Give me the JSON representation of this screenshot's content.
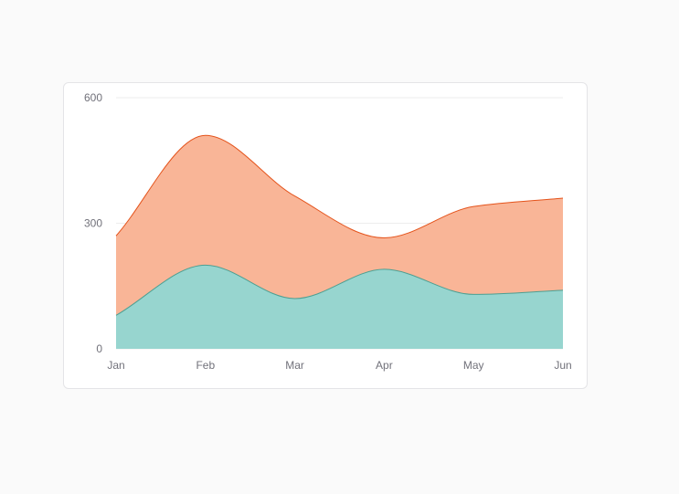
{
  "chart_data": {
    "type": "area",
    "stacked": true,
    "categories": [
      "Jan",
      "Feb",
      "Mar",
      "Apr",
      "May",
      "Jun"
    ],
    "series": [
      {
        "key": "lower",
        "values": [
          80,
          200,
          120,
          190,
          130,
          140
        ]
      },
      {
        "key": "upper",
        "values": [
          190,
          310,
          245,
          75,
          210,
          220
        ]
      }
    ],
    "y_ticks": [
      "0",
      "300",
      "600"
    ],
    "ylim": [
      0,
      600
    ],
    "grid": "horizontal",
    "curve": "smooth",
    "colors": {
      "lower_fill": "#97d5cf",
      "lower_line": "#4d9f92",
      "upper_fill": "#f9b597",
      "upper_line": "#e4531b",
      "grid": "#ededed",
      "axis_text": "#71717a"
    }
  }
}
